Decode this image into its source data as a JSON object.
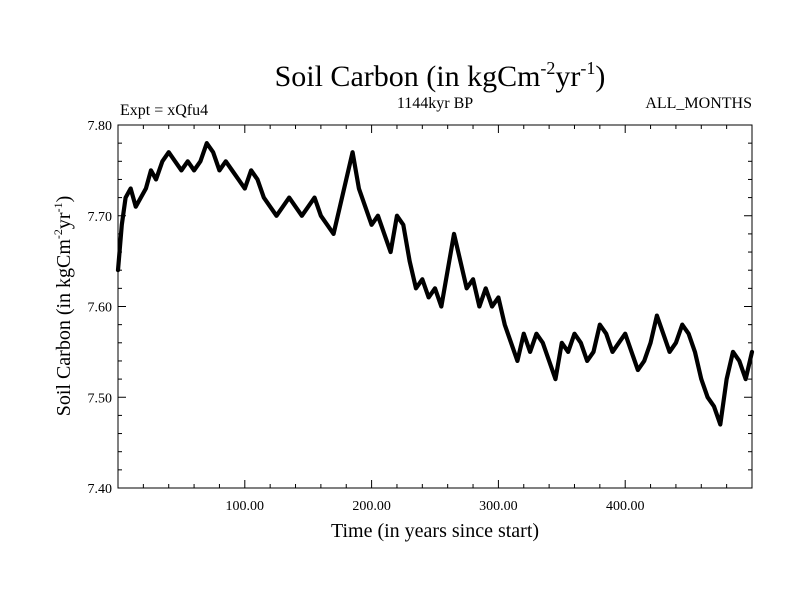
{
  "chart_data": {
    "type": "line",
    "title": {
      "prefix": "Soil Carbon (in kgCm",
      "sup1": "-2",
      "middle": "yr",
      "sup2": "-1",
      "suffix": ")"
    },
    "subtitle_left": "Expt = xQfu4",
    "subtitle_center": "1144kyr BP",
    "subtitle_right": "ALL_MONTHS",
    "xlabel": "Time (in years since start)",
    "ylabel": {
      "prefix": "Soil Carbon (in kgCm",
      "sup1": "-2",
      "middle": "yr",
      "sup2": "-1",
      "suffix": ")"
    },
    "xlim": [
      0,
      500
    ],
    "ylim": [
      7.4,
      7.8
    ],
    "xticks": [
      100,
      200,
      300,
      400
    ],
    "xtick_labels": [
      "100.00",
      "200.00",
      "300.00",
      "400.00"
    ],
    "yticks": [
      7.4,
      7.5,
      7.6,
      7.7,
      7.8
    ],
    "ytick_labels": [
      "7.40",
      "7.50",
      "7.60",
      "7.70",
      "7.80"
    ],
    "line_color": "#000000",
    "series": [
      {
        "name": "Soil Carbon",
        "x": [
          0,
          3,
          6,
          10,
          14,
          18,
          22,
          26,
          30,
          35,
          40,
          45,
          50,
          55,
          60,
          65,
          70,
          75,
          80,
          85,
          90,
          95,
          100,
          105,
          110,
          115,
          120,
          125,
          130,
          135,
          140,
          145,
          150,
          155,
          160,
          165,
          170,
          175,
          180,
          185,
          190,
          195,
          200,
          205,
          210,
          215,
          220,
          225,
          230,
          235,
          240,
          245,
          250,
          255,
          260,
          265,
          270,
          275,
          280,
          285,
          290,
          295,
          300,
          305,
          310,
          315,
          320,
          325,
          330,
          335,
          340,
          345,
          350,
          355,
          360,
          365,
          370,
          375,
          380,
          385,
          390,
          395,
          400,
          405,
          410,
          415,
          420,
          425,
          430,
          435,
          440,
          445,
          450,
          455,
          460,
          465,
          470,
          475,
          480,
          485,
          490,
          495,
          500
        ],
        "values": [
          7.64,
          7.69,
          7.72,
          7.73,
          7.71,
          7.72,
          7.73,
          7.75,
          7.74,
          7.76,
          7.77,
          7.76,
          7.75,
          7.76,
          7.75,
          7.76,
          7.78,
          7.77,
          7.75,
          7.76,
          7.75,
          7.74,
          7.73,
          7.75,
          7.74,
          7.72,
          7.71,
          7.7,
          7.71,
          7.72,
          7.71,
          7.7,
          7.71,
          7.72,
          7.7,
          7.69,
          7.68,
          7.71,
          7.74,
          7.77,
          7.73,
          7.71,
          7.69,
          7.7,
          7.68,
          7.66,
          7.7,
          7.69,
          7.65,
          7.62,
          7.63,
          7.61,
          7.62,
          7.6,
          7.64,
          7.68,
          7.65,
          7.62,
          7.63,
          7.6,
          7.62,
          7.6,
          7.61,
          7.58,
          7.56,
          7.54,
          7.57,
          7.55,
          7.57,
          7.56,
          7.54,
          7.52,
          7.56,
          7.55,
          7.57,
          7.56,
          7.54,
          7.55,
          7.58,
          7.57,
          7.55,
          7.56,
          7.57,
          7.55,
          7.53,
          7.54,
          7.56,
          7.59,
          7.57,
          7.55,
          7.56,
          7.58,
          7.57,
          7.55,
          7.52,
          7.5,
          7.49,
          7.47,
          7.52,
          7.55,
          7.54,
          7.52,
          7.55
        ]
      }
    ]
  }
}
